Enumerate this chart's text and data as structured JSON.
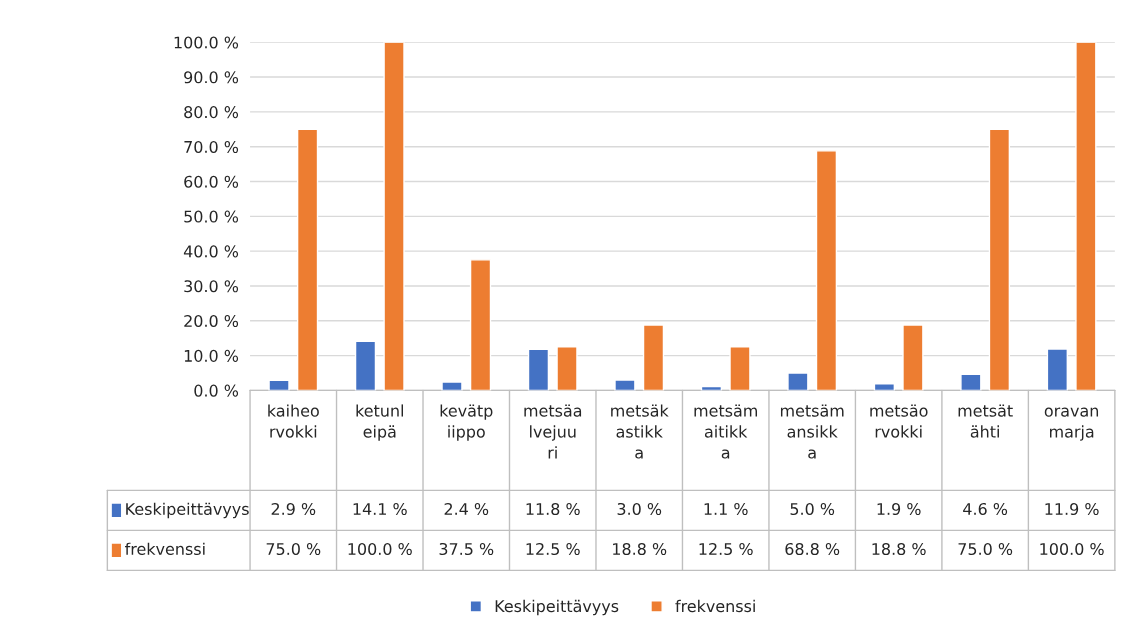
{
  "chart_data": {
    "type": "bar",
    "categories": [
      "kaiheorvokki",
      "ketunleipä",
      "kevätpiippo",
      "metsäalvejuuri",
      "metsäkastikka",
      "metsämaitikka",
      "metsämansikka",
      "metsäorvokki",
      "metsätähti",
      "oravanmarja"
    ],
    "series": [
      {
        "name": "Keskipeittävyys",
        "color": "#4472c4",
        "values": [
          2.9,
          14.1,
          2.4,
          11.8,
          3.0,
          1.1,
          5.0,
          1.9,
          4.6,
          11.9
        ],
        "value_labels": [
          "2.9 %",
          "14.1 %",
          "2.4 %",
          "11.8 %",
          "3.0 %",
          "1.1 %",
          "5.0 %",
          "1.9 %",
          "4.6 %",
          "11.9 %"
        ]
      },
      {
        "name": "frekvenssi",
        "color": "#ed7d31",
        "values": [
          75.0,
          100.0,
          37.5,
          12.5,
          18.8,
          12.5,
          68.8,
          18.8,
          75.0,
          100.0
        ],
        "value_labels": [
          "75.0 %",
          "100.0 %",
          "37.5 %",
          "12.5 %",
          "18.8 %",
          "12.5 %",
          "68.8 %",
          "18.8 %",
          "75.0 %",
          "100.0 %"
        ]
      }
    ],
    "ylim": [
      0,
      100
    ],
    "yticks": [
      {
        "value": 0,
        "label": "0.0 %"
      },
      {
        "value": 10,
        "label": "10.0 %"
      },
      {
        "value": 20,
        "label": "20.0 %"
      },
      {
        "value": 30,
        "label": "30.0 %"
      },
      {
        "value": 40,
        "label": "40.0 %"
      },
      {
        "value": 50,
        "label": "50.0 %"
      },
      {
        "value": 60,
        "label": "60.0 %"
      },
      {
        "value": 70,
        "label": "70.0 %"
      },
      {
        "value": 80,
        "label": "80.0 %"
      },
      {
        "value": 90,
        "label": "90.0 %"
      },
      {
        "value": 100,
        "label": "100.0 %"
      }
    ],
    "grid": "y",
    "legend": "bottom"
  }
}
